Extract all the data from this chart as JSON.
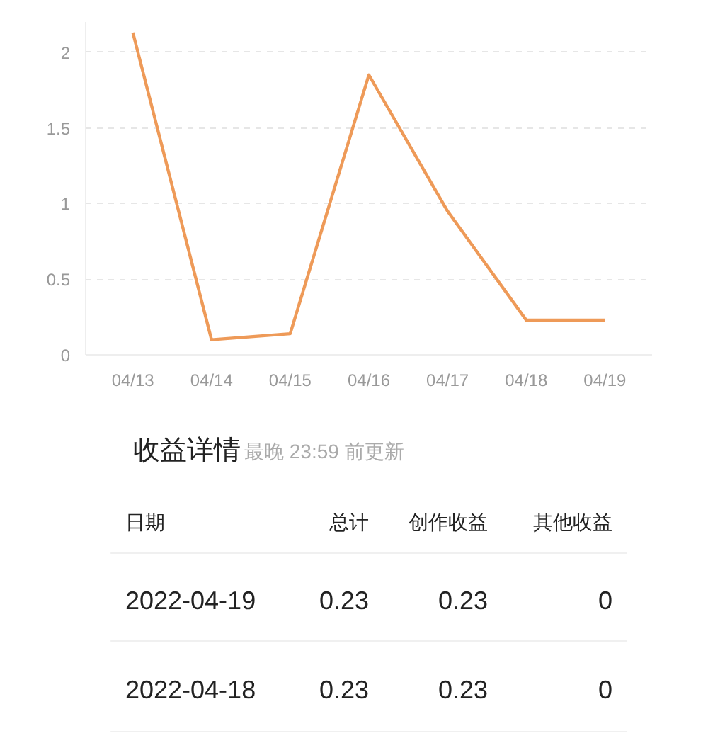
{
  "chart_data": [
    {
      "type": "line",
      "categories": [
        "04/13",
        "04/14",
        "04/15",
        "04/16",
        "04/17",
        "04/18",
        "04/19"
      ],
      "series": [
        {
          "color": "#ee9a58",
          "values": [
            2.13,
            0.1,
            0.14,
            1.85,
            0.95,
            0.23,
            0.23
          ]
        }
      ],
      "ylim": [
        0,
        2.2
      ],
      "yticks": [
        0,
        0.5,
        1,
        1.5,
        2
      ],
      "grid": "y",
      "marker": "none",
      "line_style": "solid"
    },
    {
      "type": "other",
      "title": "收益详情",
      "subtitle": "最晚 23:59 前更新",
      "annotations": [
        "日期",
        "总计",
        "创作收益",
        "其他收益",
        "2022-04-19",
        "0.23",
        "0.23",
        "0",
        "2022-04-18",
        "0.23",
        "0.23",
        "0"
      ]
    }
  ]
}
